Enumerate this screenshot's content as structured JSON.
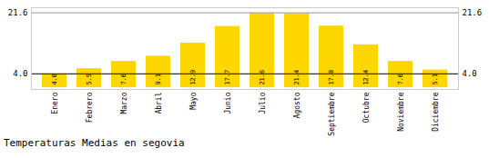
{
  "chart_data": {
    "type": "bar",
    "title": "Temperaturas Medias en segovia",
    "categories": [
      "Enero",
      "Febrero",
      "Marzo",
      "Abril",
      "Mayo",
      "Junio",
      "Julio",
      "Agosto",
      "Septiembre",
      "Octubre",
      "Noviembre",
      "Diciembre"
    ],
    "values": [
      4.0,
      5.5,
      7.6,
      9.1,
      12.9,
      17.7,
      21.6,
      21.4,
      17.8,
      12.4,
      7.6,
      5.1
    ],
    "value_labels": [
      "4.0",
      "5.5",
      "7.6",
      "9.1",
      "12.9",
      "17.7",
      "21.6",
      "21.4",
      "17.8",
      "12.4",
      "7.6",
      "5.1"
    ],
    "data_labels": true,
    "color": "#FFD700",
    "ylim": [
      -0.5,
      23.1
    ],
    "tick_labels": "x",
    "grid": false,
    "reference_lines": [
      {
        "value": 21.6,
        "label": "21.6",
        "color": "#aaaaaa"
      },
      {
        "value": 4.0,
        "label": "4.0",
        "color": "#333333"
      }
    ]
  }
}
